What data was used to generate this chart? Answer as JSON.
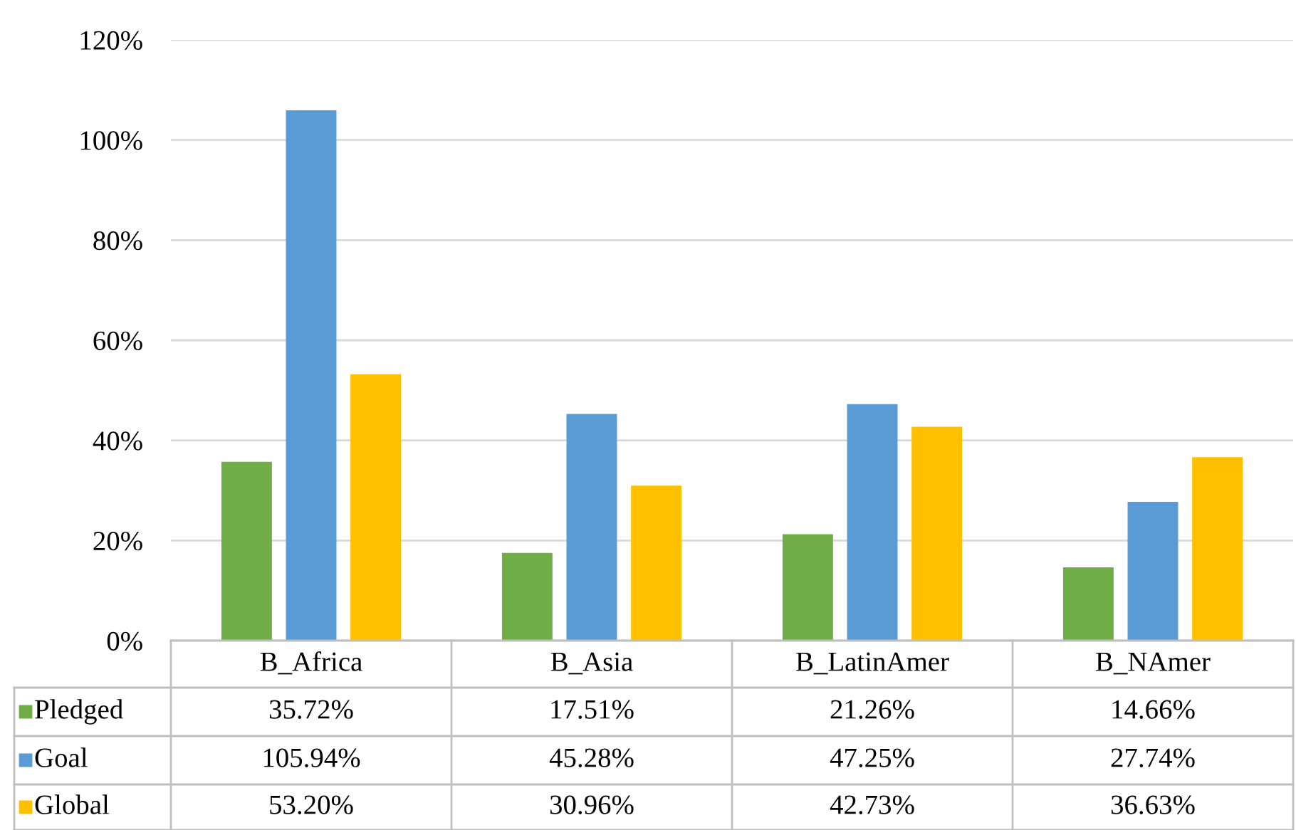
{
  "chart_data": {
    "type": "bar",
    "categories": [
      "B_Africa",
      "B_Asia",
      "B_LatinAmer",
      "B_NAmer"
    ],
    "series": [
      {
        "name": "Pledged",
        "color": "#70ad47",
        "values": [
          35.72,
          17.51,
          21.26,
          14.66
        ],
        "value_labels": [
          "35.72%",
          "17.51%",
          "21.26%",
          "14.66%"
        ]
      },
      {
        "name": "Goal",
        "color": "#5b9bd5",
        "values": [
          105.94,
          45.28,
          47.25,
          27.74
        ],
        "value_labels": [
          "105.94%",
          "45.28%",
          "47.25%",
          "27.74%"
        ]
      },
      {
        "name": "Global",
        "color": "#ffc000",
        "values": [
          53.2,
          30.96,
          42.73,
          36.63
        ],
        "value_labels": [
          "53.20%",
          "30.96%",
          "42.73%",
          "36.63%"
        ]
      }
    ],
    "ylim": [
      0,
      120
    ],
    "yticks": [
      {
        "value": 0,
        "label": "0%"
      },
      {
        "value": 20,
        "label": "20%"
      },
      {
        "value": 40,
        "label": "40%"
      },
      {
        "value": 60,
        "label": "60%"
      },
      {
        "value": 80,
        "label": "80%"
      },
      {
        "value": 100,
        "label": "100%"
      },
      {
        "value": 120,
        "label": "120%"
      }
    ],
    "grid": "y",
    "legend": "bottom"
  }
}
